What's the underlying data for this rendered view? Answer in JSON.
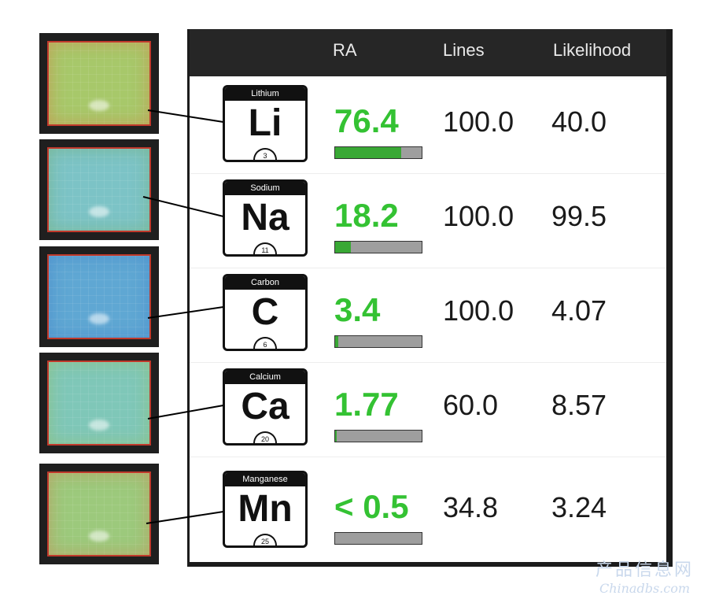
{
  "header": {
    "ra": "RA",
    "lines": "Lines",
    "likelihood": "Likelihood"
  },
  "elements": [
    {
      "name": "Lithium",
      "symbol": "Li",
      "number": "3",
      "ra": "76.4",
      "ra_fraction": 0.76,
      "lines": "100.0",
      "likelihood": "40.0",
      "heatmap": "heatmap-li"
    },
    {
      "name": "Sodium",
      "symbol": "Na",
      "number": "11",
      "ra": "18.2",
      "ra_fraction": 0.18,
      "lines": "100.0",
      "likelihood": "99.5",
      "heatmap": "heatmap-na"
    },
    {
      "name": "Carbon",
      "symbol": "C",
      "number": "6",
      "ra": "3.4",
      "ra_fraction": 0.034,
      "lines": "100.0",
      "likelihood": "4.07",
      "heatmap": "heatmap-c"
    },
    {
      "name": "Calcium",
      "symbol": "Ca",
      "number": "20",
      "ra": "1.77",
      "ra_fraction": 0.018,
      "lines": "60.0",
      "likelihood": "8.57",
      "heatmap": "heatmap-ca"
    },
    {
      "name": "Manganese",
      "symbol": "Mn",
      "number": "25",
      "ra": "< 0.5",
      "ra_fraction": 0.0,
      "lines": "34.8",
      "likelihood": "3.24",
      "heatmap": "heatmap-mn"
    }
  ],
  "colors": {
    "ra_text": "#34c233",
    "bar_fill": "#39a835",
    "bar_track": "#9e9e9e",
    "header_bg": "#262626"
  },
  "watermark": {
    "cn": "产品信息网",
    "en": "Chinadbs.com"
  }
}
